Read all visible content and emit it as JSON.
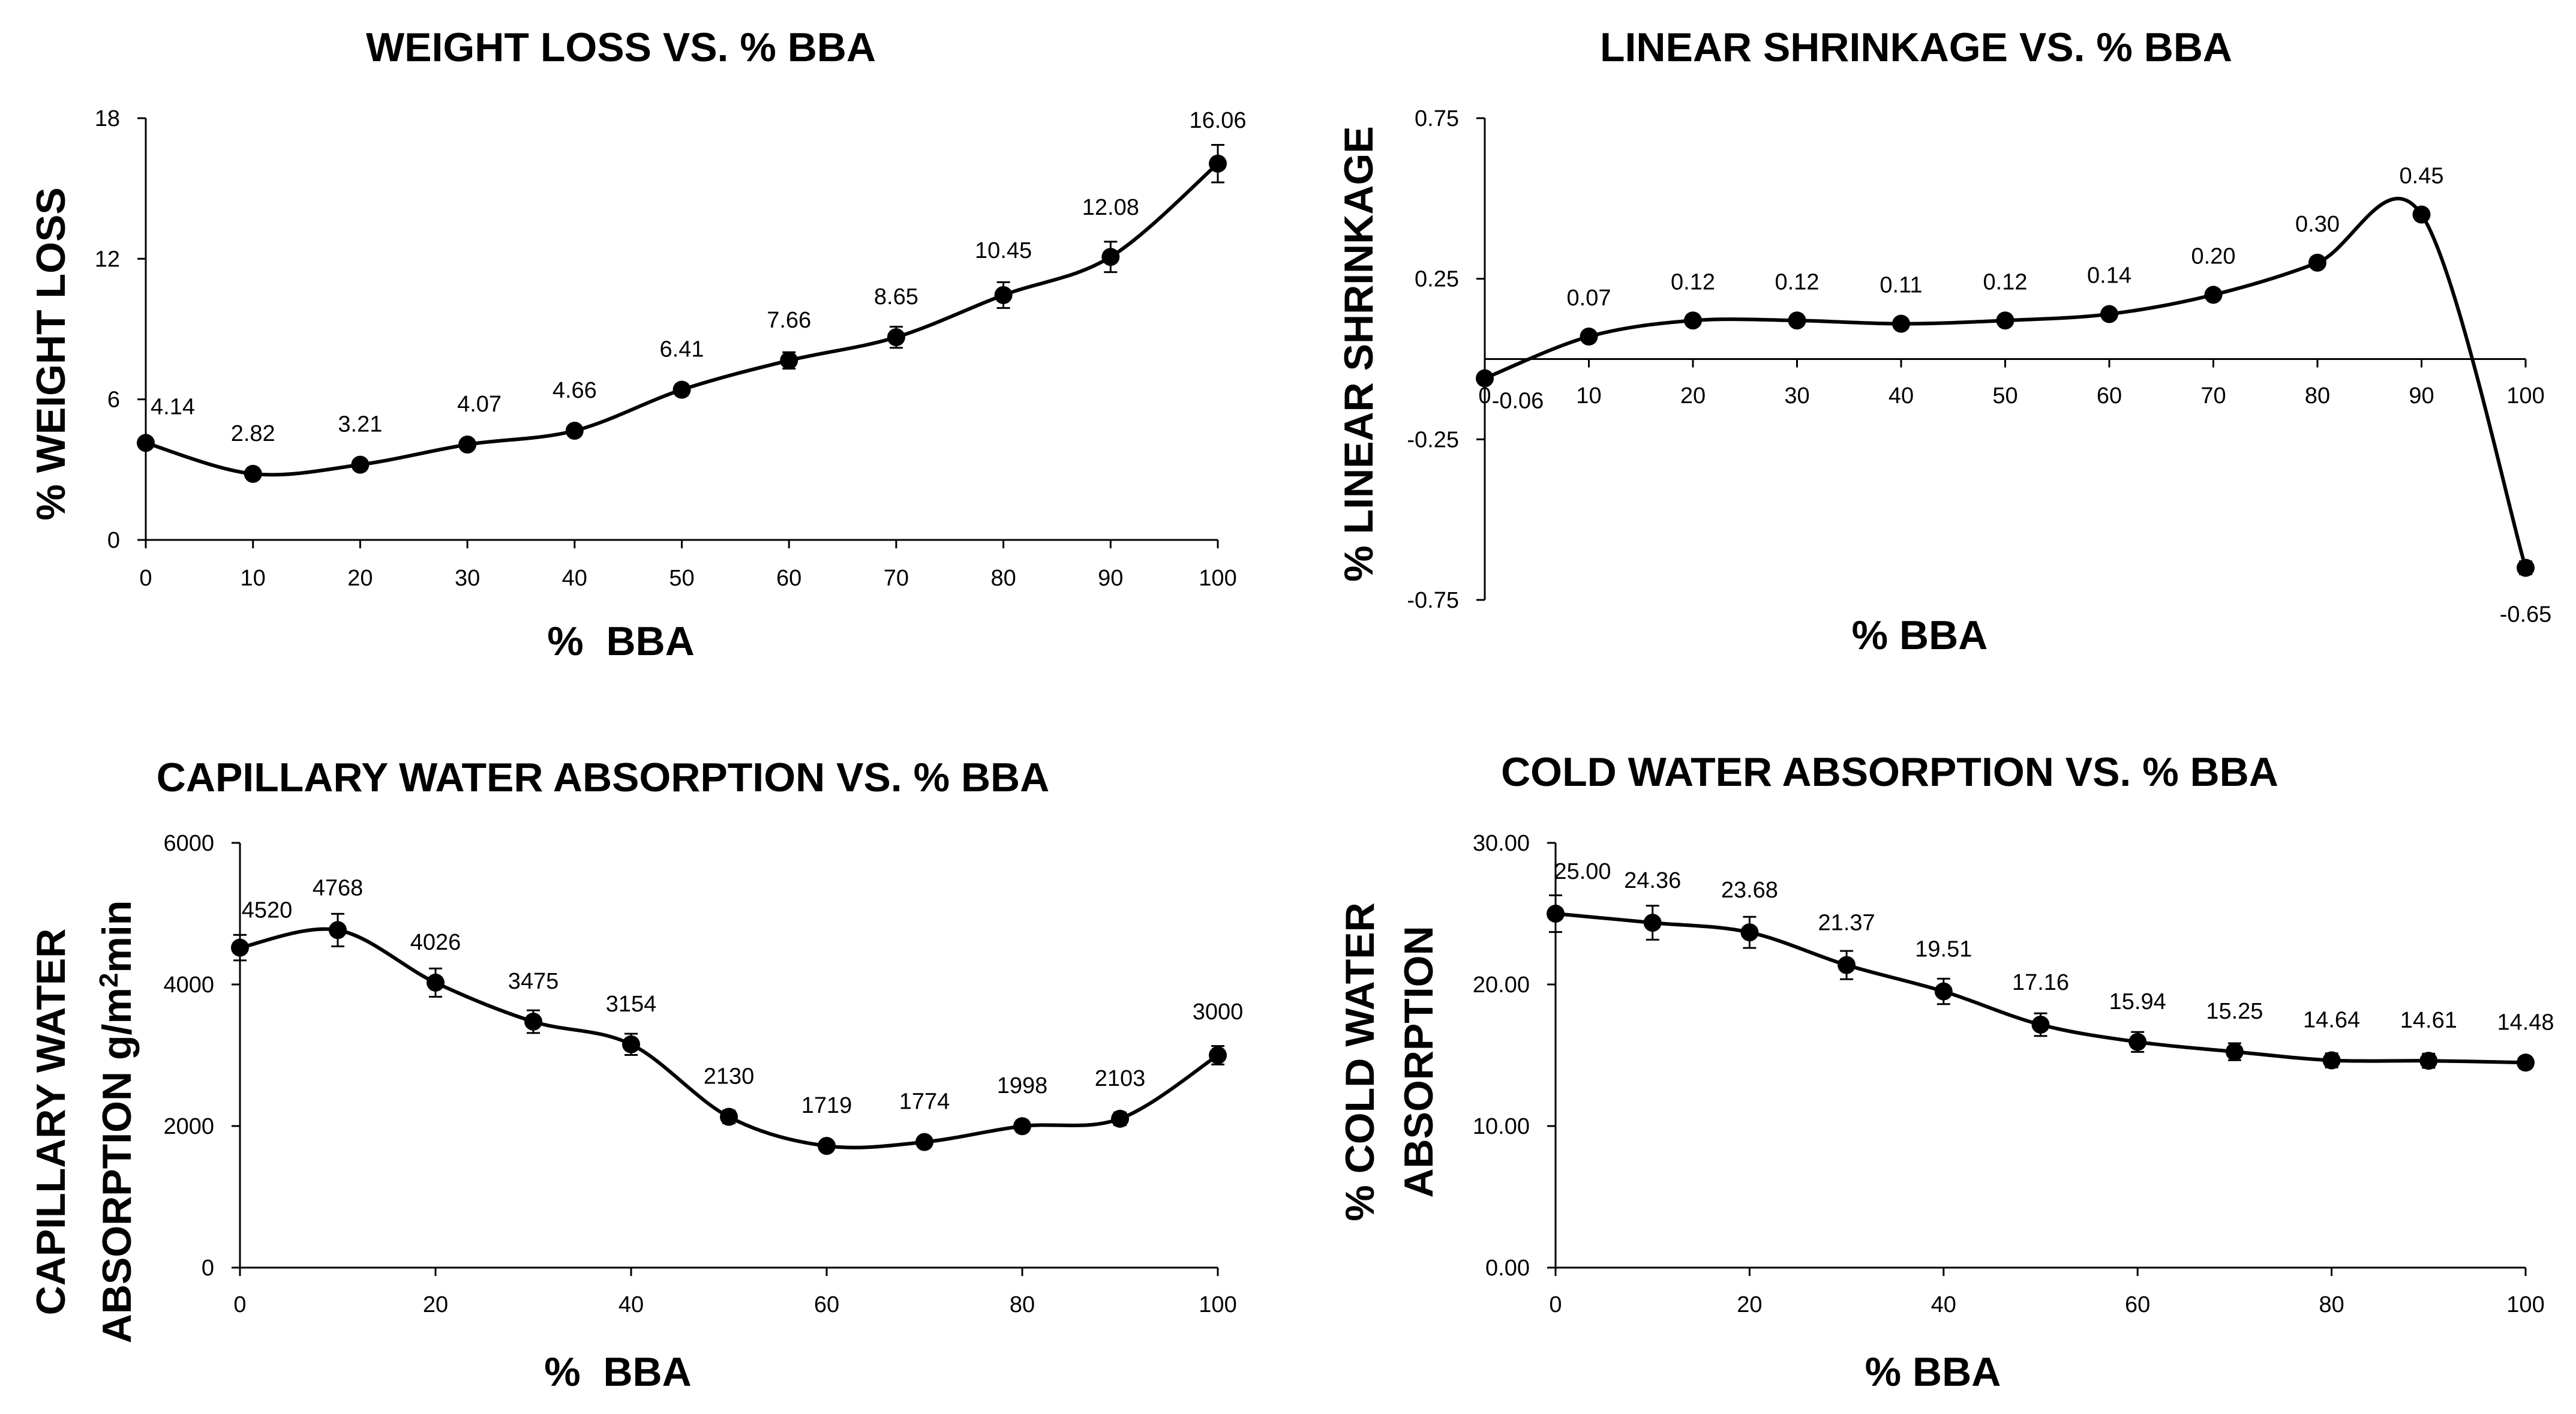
{
  "chart_data": [
    {
      "type": "line",
      "title": "WEIGHT LOSS VS. % BBA",
      "xlabel": "%  BBA",
      "ylabel": "% WEIGHT LOSS",
      "x": [
        0,
        10,
        20,
        30,
        40,
        50,
        60,
        70,
        80,
        90,
        100
      ],
      "values": [
        4.14,
        2.82,
        3.21,
        4.07,
        4.66,
        6.41,
        7.66,
        8.65,
        10.45,
        12.08,
        16.06
      ],
      "labels": [
        "4.14",
        "2.82",
        "3.21",
        "4.07",
        "4.66",
        "6.41",
        "7.66",
        "8.65",
        "10.45",
        "12.08",
        "16.06"
      ],
      "errors": [
        0.2,
        0.15,
        0.15,
        0.15,
        0.2,
        0.25,
        0.35,
        0.45,
        0.55,
        0.65,
        0.8
      ],
      "xlim": [
        0,
        100
      ],
      "xticks": [
        0,
        10,
        20,
        30,
        40,
        50,
        60,
        70,
        80,
        90,
        100
      ],
      "xtick_labels": [
        "0",
        "10",
        "20",
        "30",
        "40",
        "50",
        "60",
        "70",
        "80",
        "90",
        "100"
      ],
      "ylim": [
        0,
        18
      ],
      "yticks": [
        0,
        6,
        12,
        18
      ],
      "ytick_labels": [
        "0",
        "6",
        "12",
        "18"
      ],
      "grid": false
    },
    {
      "type": "line",
      "title": "LINEAR SHRINKAGE VS. % BBA",
      "xlabel": "% BBA",
      "ylabel": "% LINEAR SHRINKAGE",
      "x": [
        0,
        10,
        20,
        30,
        40,
        50,
        60,
        70,
        80,
        90,
        100
      ],
      "values": [
        -0.06,
        0.07,
        0.12,
        0.12,
        0.11,
        0.12,
        0.14,
        0.2,
        0.3,
        0.45,
        -0.65
      ],
      "labels": [
        "-0.06",
        "0.07",
        "0.12",
        "0.12",
        "0.11",
        "0.12",
        "0.14",
        "0.20",
        "0.30",
        "0.45",
        "-0.65"
      ],
      "errors": [
        0.01,
        0.01,
        0.01,
        0.01,
        0.01,
        0.01,
        0.01,
        0.01,
        0.01,
        0.01,
        0.02
      ],
      "xlim": [
        0,
        100
      ],
      "xticks": [
        0,
        10,
        20,
        30,
        40,
        50,
        60,
        70,
        80,
        90,
        100
      ],
      "xtick_labels": [
        "0",
        "10",
        "20",
        "30",
        "40",
        "50",
        "60",
        "70",
        "80",
        "90",
        "100"
      ],
      "ylim": [
        -0.75,
        0.75
      ],
      "yticks": [
        -0.75,
        -0.25,
        0.25,
        0.75
      ],
      "ytick_labels": [
        "-0.75",
        "-0.25",
        "0.25",
        "0.75"
      ],
      "grid": false
    },
    {
      "type": "line",
      "title": "CAPILLARY WATER ABSORPTION VS. % BBA",
      "xlabel": "%  BBA",
      "ylabel": "CAPILLARY WATER",
      "ylabel2_main": "ABSORPTION g/m",
      "ylabel2_sup": "2",
      "ylabel2_tail": "min",
      "x": [
        0,
        10,
        20,
        30,
        40,
        50,
        60,
        70,
        80,
        90,
        100
      ],
      "values": [
        4520,
        4768,
        4026,
        3475,
        3154,
        2130,
        1719,
        1774,
        1998,
        2103,
        3000
      ],
      "labels": [
        "4520",
        "4768",
        "4026",
        "3475",
        "3154",
        "2130",
        "1719",
        "1774",
        "1998",
        "2103",
        "3000"
      ],
      "errors": [
        180,
        230,
        200,
        160,
        150,
        90,
        60,
        70,
        80,
        90,
        130
      ],
      "xlim": [
        0,
        100
      ],
      "xticks": [
        0,
        20,
        40,
        60,
        80,
        100
      ],
      "xtick_labels": [
        "0",
        "20",
        "40",
        "60",
        "80",
        "100"
      ],
      "ylim": [
        0,
        6000
      ],
      "yticks": [
        0,
        2000,
        4000,
        6000
      ],
      "ytick_labels": [
        "0",
        "2000",
        "4000",
        "6000"
      ],
      "grid": false
    },
    {
      "type": "line",
      "title": "COLD WATER ABSORPTION VS. % BBA",
      "xlabel": "% BBA",
      "ylabel": "% COLD WATER",
      "ylabel2": "ABSORPTION",
      "x": [
        0,
        10,
        20,
        30,
        40,
        50,
        60,
        70,
        80,
        90,
        100
      ],
      "values": [
        25.0,
        24.36,
        23.68,
        21.37,
        19.51,
        17.16,
        15.94,
        15.25,
        14.64,
        14.61,
        14.48
      ],
      "labels": [
        "25.00",
        "24.36",
        "23.68",
        "21.37",
        "19.51",
        "17.16",
        "15.94",
        "15.25",
        "14.64",
        "14.61",
        "14.48"
      ],
      "errors": [
        1.3,
        1.2,
        1.1,
        1.0,
        0.9,
        0.8,
        0.7,
        0.6,
        0.5,
        0.5,
        0.4
      ],
      "xlim": [
        0,
        100
      ],
      "xticks": [
        0,
        20,
        40,
        60,
        80,
        100
      ],
      "xtick_labels": [
        "0",
        "20",
        "40",
        "60",
        "80",
        "100"
      ],
      "ylim": [
        0,
        30
      ],
      "yticks": [
        0,
        10,
        20,
        30
      ],
      "ytick_labels": [
        "0.00",
        "10.00",
        "20.00",
        "30.00"
      ],
      "grid": false
    }
  ]
}
